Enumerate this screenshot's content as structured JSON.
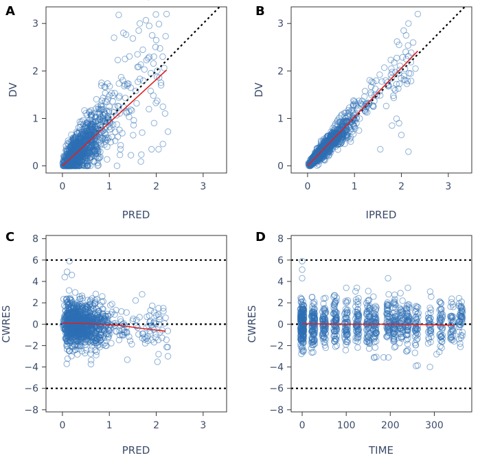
{
  "figure": {
    "background": "#ffffff",
    "point_color": "#2d6fb5",
    "smooth_color": "#e02020",
    "ref_color": "#000000"
  },
  "chart_data": [
    {
      "panel": "A",
      "type": "scatter",
      "xlabel": "PRED",
      "ylabel": "DV",
      "xlim": [
        -0.35,
        3.5
      ],
      "ylim": [
        -0.15,
        3.35
      ],
      "xticks": [
        0,
        1,
        2,
        3
      ],
      "yticks": [
        0,
        1,
        2,
        3
      ],
      "reference_lines": [
        {
          "type": "identity",
          "style": "dotted"
        }
      ],
      "trend_line": {
        "x": [
          0,
          2.22
        ],
        "y": [
          0,
          2.02
        ]
      },
      "point_cloud": {
        "x_range": [
          0,
          2.3
        ],
        "dv_max": 3.2,
        "n_points": 1100
      },
      "sample_points": [
        [
          1.2,
          3.18
        ],
        [
          2.22,
          3.2
        ],
        [
          1.65,
          3.0
        ],
        [
          1.85,
          2.95
        ],
        [
          1.1,
          2.7
        ],
        [
          1.3,
          2.8
        ],
        [
          2.0,
          2.65
        ],
        [
          1.95,
          2.3
        ],
        [
          2.1,
          1.75
        ],
        [
          1.7,
          0.7
        ],
        [
          1.9,
          0.35
        ],
        [
          2.05,
          0.35
        ],
        [
          2.25,
          0.72
        ],
        [
          1.6,
          2.35
        ]
      ]
    },
    {
      "panel": "B",
      "type": "scatter",
      "xlabel": "IPRED",
      "ylabel": "DV",
      "xlim": [
        -0.35,
        3.5
      ],
      "ylim": [
        -0.15,
        3.35
      ],
      "xticks": [
        0,
        1,
        2,
        3
      ],
      "yticks": [
        0,
        1,
        2,
        3
      ],
      "reference_lines": [
        {
          "type": "identity",
          "style": "dotted"
        }
      ],
      "trend_line": {
        "x": [
          0,
          2.35
        ],
        "y": [
          0,
          2.42
        ]
      },
      "point_cloud": {
        "x_range": [
          0,
          2.35
        ],
        "dv_max": 3.2,
        "n_points": 1100
      },
      "sample_points": [
        [
          2.35,
          3.2
        ],
        [
          2.15,
          3.0
        ],
        [
          2.05,
          2.85
        ],
        [
          2.1,
          2.75
        ],
        [
          1.95,
          2.55
        ],
        [
          2.25,
          2.6
        ],
        [
          1.8,
          0.85
        ],
        [
          2.0,
          0.65
        ],
        [
          2.15,
          0.3
        ],
        [
          1.55,
          0.35
        ],
        [
          1.95,
          0.9
        ],
        [
          2.3,
          2.05
        ]
      ]
    },
    {
      "panel": "C",
      "type": "scatter",
      "xlabel": "PRED",
      "ylabel": "CWRES",
      "xlim": [
        -0.35,
        3.5
      ],
      "ylim": [
        -8.2,
        8.3
      ],
      "xticks": [
        0,
        1,
        2,
        3
      ],
      "yticks": [
        -8,
        -6,
        -4,
        -2,
        0,
        2,
        4,
        6,
        8
      ],
      "reference_lines": [
        {
          "type": "hline",
          "y": 6,
          "style": "dotted"
        },
        {
          "type": "hline",
          "y": 0,
          "style": "dotted"
        },
        {
          "type": "hline",
          "y": -6,
          "style": "dotted"
        }
      ],
      "trend_line": {
        "x": [
          0,
          0.6,
          1.2,
          1.7,
          2.2
        ],
        "y": [
          0.1,
          0.05,
          -0.1,
          -0.4,
          -0.65
        ]
      },
      "point_cloud": {
        "x_range": [
          0,
          2.3
        ],
        "cwres_range": [
          -4,
          6
        ],
        "n_points": 1100
      },
      "sample_points": [
        [
          0.15,
          5.9
        ],
        [
          0.1,
          4.9
        ],
        [
          0.2,
          4.6
        ],
        [
          0.05,
          4.4
        ],
        [
          1.7,
          2.8
        ],
        [
          2.05,
          1.5
        ],
        [
          2.15,
          1.5
        ],
        [
          2.05,
          -2.8
        ],
        [
          2.25,
          -3.0
        ],
        [
          1.8,
          0.7
        ],
        [
          1.95,
          -0.5
        ],
        [
          2.2,
          0.6
        ]
      ]
    },
    {
      "panel": "D",
      "type": "scatter",
      "xlabel": "TIME",
      "ylabel": "CWRES",
      "xlim": [
        -25,
        385
      ],
      "ylim": [
        -8.2,
        8.3
      ],
      "xticks": [
        0,
        100,
        200,
        300
      ],
      "yticks": [
        -8,
        -6,
        -4,
        -2,
        0,
        2,
        4,
        6,
        8
      ],
      "reference_lines": [
        {
          "type": "hline",
          "y": 6,
          "style": "dotted"
        },
        {
          "type": "hline",
          "y": 0,
          "style": "dotted"
        },
        {
          "type": "hline",
          "y": -6,
          "style": "dotted"
        }
      ],
      "trend_line": {
        "x": [
          0,
          100,
          200,
          300,
          345
        ],
        "y": [
          0.05,
          0.0,
          0.0,
          -0.05,
          -0.1
        ]
      },
      "time_clusters": [
        0,
        25,
        50,
        75,
        100,
        125,
        150,
        165,
        195,
        210,
        225,
        240,
        260,
        290,
        315,
        340,
        360
      ],
      "point_cloud": {
        "cwres_range": [
          -4,
          6
        ],
        "n_points": 1100
      },
      "sample_points": [
        [
          0,
          5.9
        ],
        [
          0,
          5.1
        ],
        [
          0,
          4.3
        ],
        [
          195,
          4.3
        ],
        [
          100,
          3.4
        ],
        [
          150,
          3.1
        ],
        [
          185,
          -3.1
        ],
        [
          290,
          -4.0
        ],
        [
          305,
          -2.8
        ],
        [
          360,
          1.7
        ],
        [
          345,
          -1.6
        ],
        [
          240,
          -2.4
        ]
      ]
    }
  ]
}
